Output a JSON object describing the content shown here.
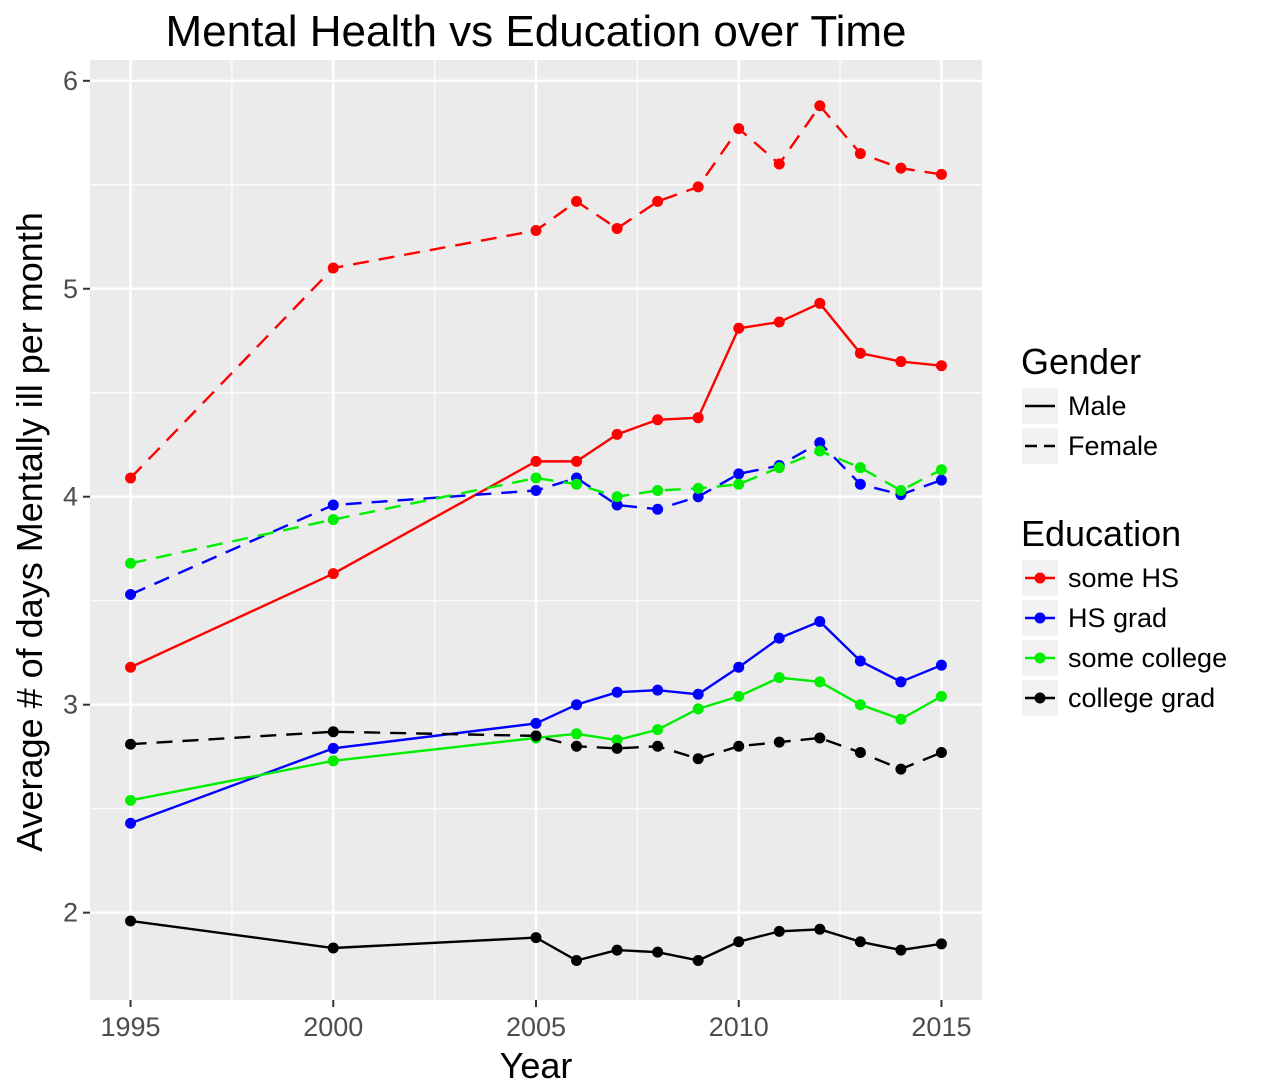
{
  "chart_data": {
    "type": "line",
    "title": "Mental Health vs Education over Time",
    "xlabel": "Year",
    "ylabel": "Average # of days Mentally ill per month",
    "xlim": [
      1994,
      2016
    ],
    "ylim": [
      1.58,
      6.1
    ],
    "x_ticks": [
      1995,
      2000,
      2005,
      2010,
      2015
    ],
    "y_ticks": [
      2,
      3,
      4,
      5,
      6
    ],
    "x_minor_ticks": [
      1997.5,
      2002.5,
      2007.5,
      2012.5
    ],
    "y_minor_ticks": [
      2.5,
      3.5,
      4.5,
      5.5
    ],
    "grid": true,
    "panel_background": "#ebebeb",
    "legend": {
      "position": "right",
      "groups": [
        {
          "title": "Gender",
          "items": [
            {
              "label": "Male",
              "linetype": "solid"
            },
            {
              "label": "Female",
              "linetype": "dashed"
            }
          ]
        },
        {
          "title": "Education",
          "items": [
            {
              "label": "some HS",
              "color": "#ff0000"
            },
            {
              "label": "HS grad",
              "color": "#0000ff"
            },
            {
              "label": "some college",
              "color": "#00ee00"
            },
            {
              "label": "college grad",
              "color": "#000000"
            }
          ]
        }
      ]
    },
    "x": [
      1995,
      2000,
      2005,
      2006,
      2007,
      2008,
      2009,
      2010,
      2011,
      2012,
      2013,
      2014,
      2015
    ],
    "series": [
      {
        "education": "some HS",
        "gender": "Female",
        "color": "#ff0000",
        "linetype": "dashed",
        "values": [
          4.09,
          5.1,
          5.28,
          5.42,
          5.29,
          5.42,
          5.49,
          5.77,
          5.6,
          5.88,
          5.65,
          5.58,
          5.55
        ]
      },
      {
        "education": "some HS",
        "gender": "Male",
        "color": "#ff0000",
        "linetype": "solid",
        "values": [
          3.18,
          3.63,
          4.17,
          4.17,
          4.3,
          4.37,
          4.38,
          4.81,
          4.84,
          4.93,
          4.69,
          4.65,
          4.63
        ]
      },
      {
        "education": "HS grad",
        "gender": "Female",
        "color": "#0000ff",
        "linetype": "dashed",
        "values": [
          3.53,
          3.96,
          4.03,
          4.09,
          3.96,
          3.94,
          4.0,
          4.11,
          4.15,
          4.26,
          4.06,
          4.01,
          4.08
        ]
      },
      {
        "education": "HS grad",
        "gender": "Male",
        "color": "#0000ff",
        "linetype": "solid",
        "values": [
          2.43,
          2.79,
          2.91,
          3.0,
          3.06,
          3.07,
          3.05,
          3.18,
          3.32,
          3.4,
          3.21,
          3.11,
          3.19
        ]
      },
      {
        "education": "some college",
        "gender": "Female",
        "color": "#00ee00",
        "linetype": "dashed",
        "values": [
          3.68,
          3.89,
          4.09,
          4.06,
          4.0,
          4.03,
          4.04,
          4.06,
          4.14,
          4.22,
          4.14,
          4.03,
          4.13
        ]
      },
      {
        "education": "some college",
        "gender": "Male",
        "color": "#00ee00",
        "linetype": "solid",
        "values": [
          2.54,
          2.73,
          2.84,
          2.86,
          2.83,
          2.88,
          2.98,
          3.04,
          3.13,
          3.11,
          3.0,
          2.93,
          3.04
        ]
      },
      {
        "education": "college grad",
        "gender": "Female",
        "color": "#000000",
        "linetype": "dashed",
        "values": [
          2.81,
          2.87,
          2.85,
          2.8,
          2.79,
          2.8,
          2.74,
          2.8,
          2.82,
          2.84,
          2.77,
          2.69,
          2.77
        ]
      },
      {
        "education": "college grad",
        "gender": "Male",
        "color": "#000000",
        "linetype": "solid",
        "values": [
          1.96,
          1.83,
          1.88,
          1.77,
          1.82,
          1.81,
          1.77,
          1.86,
          1.91,
          1.92,
          1.86,
          1.82,
          1.85
        ]
      }
    ]
  }
}
